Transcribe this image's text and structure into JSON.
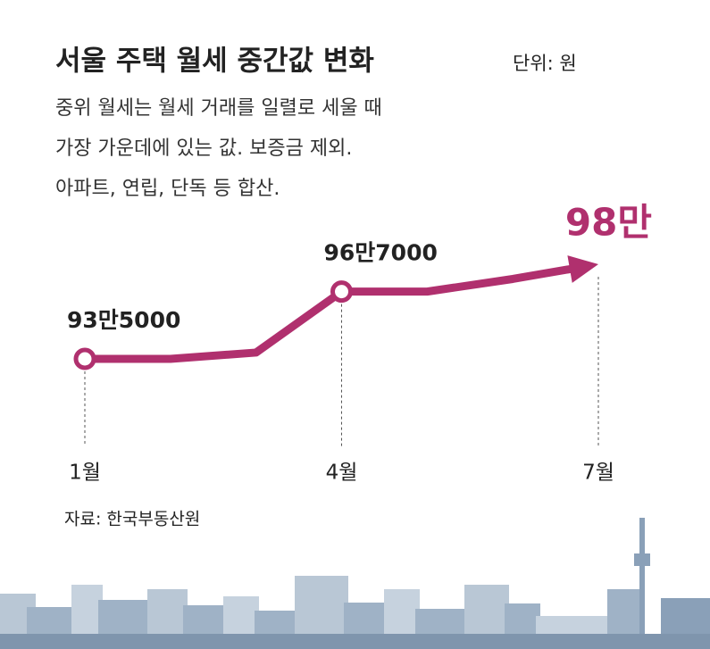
{
  "chart_data": {
    "type": "line",
    "title": "서울 주택 월세 중간값 변화",
    "unit": "단위: 원",
    "subtitle": [
      "중위 월세는 월세 거래를 일렬로 세울 때",
      "가장 가운데에 있는 값. 보증금 제외.",
      "아파트, 연립, 단독 등 합산."
    ],
    "source": "자료: 한국부동산원",
    "categories": [
      "1월",
      null,
      null,
      "4월",
      null,
      null,
      "7월"
    ],
    "series": [
      {
        "name": "월세 중간값",
        "color": "#b0306e",
        "values": [
          935000,
          935000,
          938000,
          967000,
          967000,
          973000,
          980000
        ],
        "value_labels": [
          "93만5000",
          null,
          null,
          "96만7000",
          null,
          null,
          "98만"
        ]
      }
    ]
  }
}
